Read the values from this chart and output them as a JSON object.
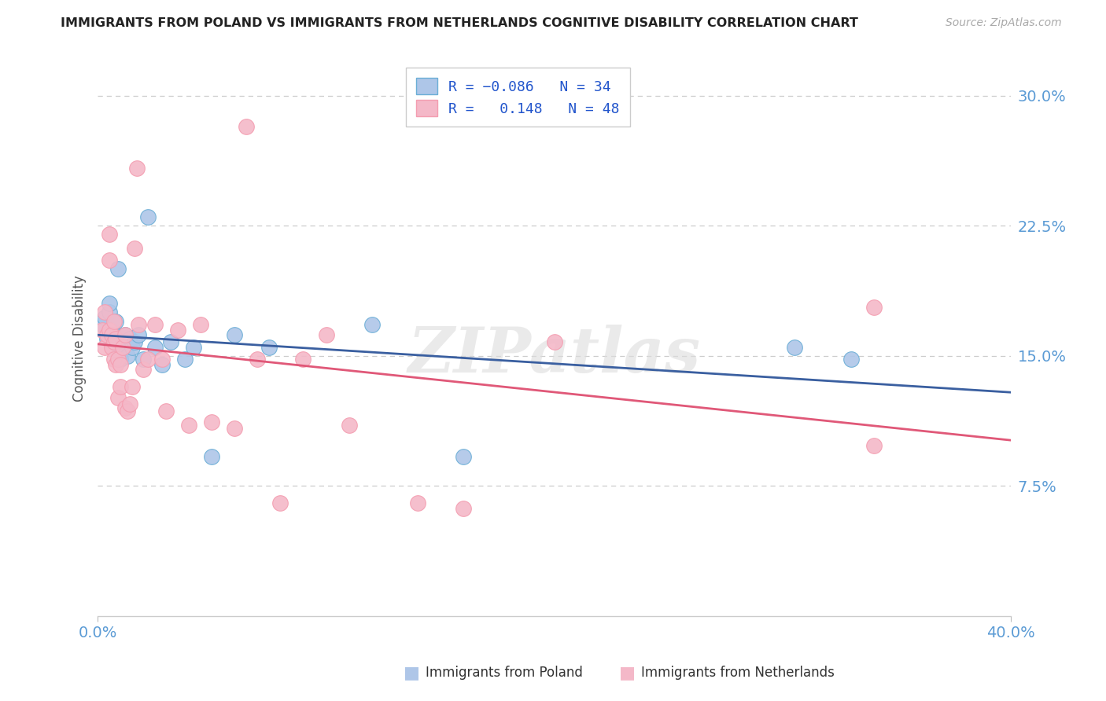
{
  "title": "IMMIGRANTS FROM POLAND VS IMMIGRANTS FROM NETHERLANDS COGNITIVE DISABILITY CORRELATION CHART",
  "source": "Source: ZipAtlas.com",
  "ylabel": "Cognitive Disability",
  "xlim": [
    0.0,
    0.4
  ],
  "ylim": [
    0.0,
    0.32
  ],
  "yticks": [
    0.075,
    0.15,
    0.225,
    0.3
  ],
  "ytick_labels": [
    "7.5%",
    "15.0%",
    "22.5%",
    "30.0%"
  ],
  "legend_R1": "R = -0.086",
  "legend_N1": "N = 34",
  "legend_R2": "R =  0.148",
  "legend_N2": "N = 48",
  "color_poland_fill": "#aec6e8",
  "color_poland_edge": "#6baed6",
  "color_netherlands_fill": "#f4b8c8",
  "color_netherlands_edge": "#f49db0",
  "color_line_poland": "#3a5fa0",
  "color_line_netherlands": "#e05878",
  "color_axis_blue": "#5b9bd5",
  "watermark": "ZIPatlas",
  "poland_x": [
    0.002,
    0.003,
    0.004,
    0.005,
    0.005,
    0.006,
    0.006,
    0.007,
    0.008,
    0.008,
    0.009,
    0.01,
    0.01,
    0.011,
    0.012,
    0.013,
    0.014,
    0.015,
    0.016,
    0.018,
    0.02,
    0.022,
    0.025,
    0.028,
    0.032,
    0.038,
    0.042,
    0.05,
    0.06,
    0.075,
    0.12,
    0.16,
    0.305,
    0.33
  ],
  "poland_y": [
    0.168,
    0.172,
    0.16,
    0.175,
    0.18,
    0.165,
    0.158,
    0.162,
    0.155,
    0.17,
    0.2,
    0.158,
    0.148,
    0.155,
    0.162,
    0.15,
    0.16,
    0.155,
    0.158,
    0.162,
    0.148,
    0.23,
    0.155,
    0.145,
    0.158,
    0.148,
    0.155,
    0.092,
    0.162,
    0.155,
    0.168,
    0.092,
    0.155,
    0.148
  ],
  "netherlands_x": [
    0.002,
    0.003,
    0.003,
    0.004,
    0.005,
    0.005,
    0.005,
    0.006,
    0.006,
    0.007,
    0.007,
    0.007,
    0.008,
    0.008,
    0.009,
    0.009,
    0.01,
    0.01,
    0.011,
    0.012,
    0.012,
    0.013,
    0.014,
    0.015,
    0.016,
    0.017,
    0.018,
    0.02,
    0.022,
    0.025,
    0.028,
    0.03,
    0.035,
    0.04,
    0.045,
    0.05,
    0.06,
    0.065,
    0.07,
    0.08,
    0.09,
    0.1,
    0.11,
    0.14,
    0.16,
    0.2,
    0.34,
    0.34
  ],
  "netherlands_y": [
    0.165,
    0.155,
    0.175,
    0.162,
    0.22,
    0.165,
    0.205,
    0.155,
    0.162,
    0.17,
    0.148,
    0.158,
    0.145,
    0.16,
    0.126,
    0.148,
    0.132,
    0.145,
    0.155,
    0.12,
    0.162,
    0.118,
    0.122,
    0.132,
    0.212,
    0.258,
    0.168,
    0.142,
    0.148,
    0.168,
    0.148,
    0.118,
    0.165,
    0.11,
    0.168,
    0.112,
    0.108,
    0.282,
    0.148,
    0.065,
    0.148,
    0.162,
    0.11,
    0.065,
    0.062,
    0.158,
    0.098,
    0.178
  ]
}
